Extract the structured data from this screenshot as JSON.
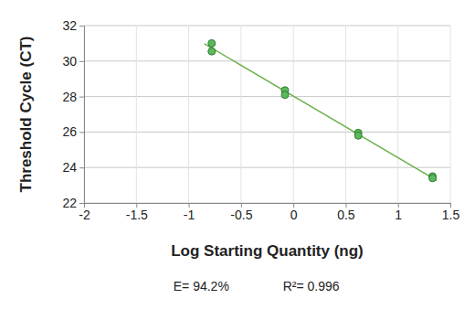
{
  "chart_data": {
    "type": "scatter",
    "xlabel": "Log Starting Quantity (ng)",
    "ylabel": "Threshold Cycle (CT)",
    "annotations": [
      "E= 94.2%",
      "R²= 0.996"
    ],
    "xlim": [
      -2,
      1.5
    ],
    "xticks": [
      -2,
      -1.5,
      -1,
      -0.5,
      0,
      0.5,
      1,
      1.5
    ],
    "ylim": [
      22,
      32
    ],
    "yticks": [
      22,
      24,
      26,
      28,
      30,
      32
    ],
    "grid": true,
    "series": [
      {
        "type": "scatter",
        "marker": "circle",
        "color": "#5cb85c",
        "x": [
          -0.78,
          -0.78,
          -0.08,
          -0.08,
          0.62,
          0.62,
          1.33,
          1.33
        ],
        "values": [
          31.0,
          30.55,
          28.35,
          28.1,
          25.95,
          25.8,
          23.5,
          23.4
        ]
      },
      {
        "type": "line",
        "line_style": "solid",
        "color": "#6ab04c",
        "x": [
          -0.85,
          1.37
        ],
        "values": [
          30.98,
          23.27
        ]
      }
    ]
  }
}
